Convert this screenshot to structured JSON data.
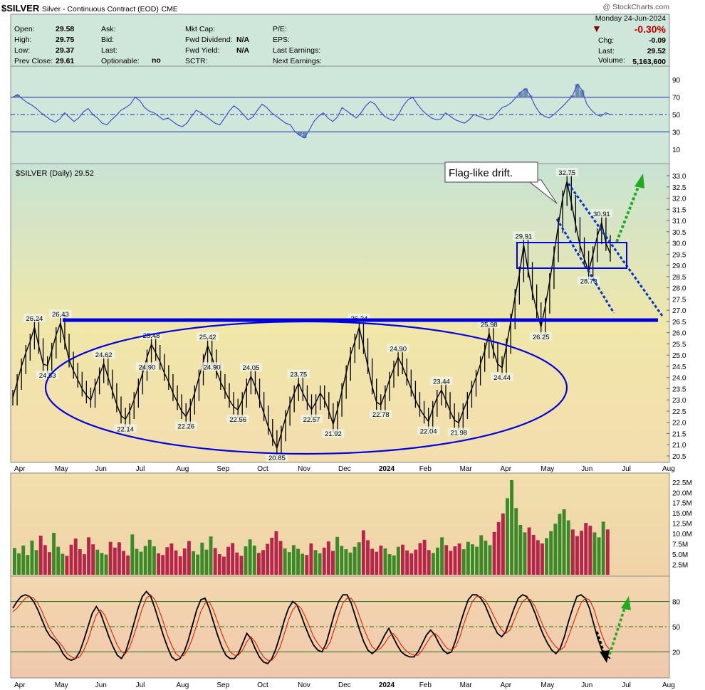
{
  "header": {
    "symbol": "$SILVER",
    "description": "Silver - Continuous Contract (EOD)",
    "exchange": "CME",
    "copyright": "@ StockCharts.com",
    "date": "Monday  24-Jun-2024",
    "stats_left": [
      {
        "label": "Open:",
        "value": "29.58"
      },
      {
        "label": "High:",
        "value": "29.75"
      },
      {
        "label": "Low:",
        "value": "29.37"
      },
      {
        "label": "Prev Close:",
        "value": "29.61"
      }
    ],
    "stats_mid": [
      {
        "label": "Ask:",
        "value": ""
      },
      {
        "label": "Bid:",
        "value": ""
      },
      {
        "label": "Last:",
        "value": ""
      },
      {
        "label": "Optionable:",
        "value": "no"
      }
    ],
    "stats_mid2": [
      {
        "label": "Mkt Cap:",
        "value": ""
      },
      {
        "label": "Fwd Dividend:",
        "value": "N/A"
      },
      {
        "label": "Fwd Yield:",
        "value": "N/A"
      },
      {
        "label": "SCTR:",
        "value": ""
      }
    ],
    "stats_mid3": [
      {
        "label": "P/E:",
        "value": ""
      },
      {
        "label": "EPS:",
        "value": ""
      },
      {
        "label": "Last Earnings:",
        "value": ""
      },
      {
        "label": "Next Earnings:",
        "value": ""
      }
    ],
    "change_pct": "-0.30%",
    "chg_label": "Chg:",
    "chg_value": "-0.09",
    "last_label": "Last:",
    "last_value": "29.52",
    "volume_label": "Volume:",
    "volume_value": "5,163,600",
    "down_color": "#8b0000"
  },
  "chart_data": [
    {
      "type": "line",
      "panel": "rsi",
      "yticks": [
        10,
        30,
        50,
        70,
        90
      ],
      "guides": [
        30,
        50,
        70
      ],
      "series": [
        {
          "values": [
            70,
            73,
            68,
            64,
            61,
            57,
            52,
            48,
            44,
            41,
            45,
            52,
            47,
            42,
            46,
            53,
            57,
            50,
            46,
            40,
            38,
            44,
            49,
            55,
            58,
            62,
            70,
            66,
            58,
            54,
            52,
            48,
            44,
            46,
            42,
            38,
            36,
            40,
            48,
            55,
            52,
            48,
            44,
            40,
            38,
            46,
            54,
            60,
            56,
            50,
            44,
            47,
            55,
            62,
            58,
            52,
            48,
            44,
            40,
            38,
            30,
            26,
            23,
            32,
            42,
            48,
            52,
            46,
            42,
            47,
            58,
            54,
            50,
            46,
            52,
            60,
            65,
            62,
            54,
            48,
            45,
            43,
            50,
            60,
            67,
            70,
            62,
            55,
            50,
            46,
            44,
            45,
            52,
            48,
            44,
            42,
            40,
            44,
            50,
            48,
            46,
            44,
            46,
            52,
            58,
            60,
            64,
            70,
            76,
            80,
            72,
            60,
            52,
            48,
            46,
            50,
            55,
            60,
            66,
            72,
            85,
            78,
            62,
            55,
            50,
            48,
            52,
            50
          ]
        }
      ]
    },
    {
      "type": "line",
      "panel": "price",
      "title": "$SILVER (Daily) 29.52",
      "ylim": [
        20.5,
        33.0
      ],
      "yticks": [
        "20.5",
        "21.0",
        "21.5",
        "22.0",
        "22.5",
        "23.0",
        "23.5",
        "24.0",
        "24.5",
        "25.0",
        "25.5",
        "26.0",
        "26.5",
        "27.0",
        "27.5",
        "28.0",
        "28.5",
        "29.0",
        "29.5",
        "30.0",
        "30.5",
        "31.0",
        "31.5",
        "32.0",
        "32.5",
        "33.0"
      ],
      "xticks": [
        "Apr",
        "May",
        "Jun",
        "Jul",
        "Aug",
        "Sep",
        "Oct",
        "Nov",
        "Dec",
        "2024",
        "Feb",
        "Mar",
        "Apr",
        "May",
        "Jun",
        "Jul",
        "Aug"
      ],
      "series": [
        {
          "values": [
            23.1,
            23.8,
            24.5,
            25.1,
            25.6,
            26.24,
            25.4,
            24.6,
            24.53,
            25.2,
            25.9,
            26.43,
            25.6,
            24.8,
            24.3,
            23.9,
            23.5,
            23.2,
            23.0,
            23.6,
            24.1,
            24.62,
            24.0,
            23.4,
            22.8,
            22.3,
            22.14,
            22.5,
            23.0,
            23.6,
            24.2,
            24.9,
            25.48,
            25.1,
            24.7,
            24.2,
            23.8,
            23.3,
            22.9,
            22.5,
            22.26,
            22.7,
            23.3,
            24.0,
            24.7,
            25.42,
            24.9,
            24.3,
            23.8,
            23.4,
            23.0,
            22.7,
            22.56,
            23.0,
            23.6,
            24.05,
            23.6,
            23.0,
            22.4,
            21.8,
            21.3,
            20.85,
            21.5,
            22.2,
            22.8,
            23.3,
            23.75,
            23.3,
            22.9,
            22.57,
            22.9,
            23.3,
            23.0,
            22.5,
            21.92,
            22.6,
            23.4,
            24.2,
            25.0,
            25.6,
            26.24,
            25.4,
            24.5,
            23.6,
            22.9,
            22.78,
            23.3,
            23.9,
            24.4,
            24.9,
            24.5,
            24.0,
            23.5,
            23.0,
            22.6,
            22.3,
            22.04,
            22.6,
            23.1,
            23.44,
            23.0,
            22.5,
            22.1,
            21.98,
            22.5,
            23.0,
            23.5,
            24.0,
            24.6,
            25.2,
            25.98,
            25.2,
            24.6,
            24.44,
            25.4,
            26.5,
            27.6,
            28.6,
            29.91,
            28.8,
            27.8,
            27.0,
            26.25,
            27.2,
            28.3,
            29.5,
            30.8,
            32.0,
            32.75,
            31.8,
            30.8,
            29.9,
            29.3,
            28.73,
            29.5,
            30.3,
            30.91,
            30.0,
            29.52
          ]
        }
      ],
      "annotations": [
        "26.24",
        "24.53",
        "26.43",
        "24.62",
        "22.14",
        "25.48",
        "22.26",
        "25.42",
        "22.56",
        "24.05",
        "20.85",
        "23.75",
        "22.57",
        "21.92",
        "26.24",
        "22.78",
        "24.90",
        "22.04",
        "23.44",
        "21.98",
        "25.98",
        "24.44",
        "29.91",
        "26.25",
        "32.75",
        "28.73",
        "30.91"
      ],
      "callout": "Flag-like drift.",
      "line_color": "#0000dd",
      "arrow_color": "#22aa22"
    },
    {
      "type": "bar",
      "panel": "volume",
      "yticks": [
        "2.5M",
        "5.0M",
        "7.5M",
        "10.0M",
        "12.5M",
        "15.0M",
        "17.5M",
        "20.0M",
        "22.5M"
      ],
      "values": [
        6.5,
        5.2,
        7.1,
        4.8,
        8.3,
        6.0,
        9.5,
        7.2,
        5.5,
        10.2,
        6.8,
        5.1,
        4.6,
        7.3,
        8.8,
        6.2,
        5.0,
        9.1,
        7.4,
        6.1,
        5.3,
        4.9,
        8.0,
        6.6,
        7.9,
        5.8,
        4.7,
        9.8,
        6.3,
        5.6,
        7.0,
        8.5,
        6.9,
        5.2,
        4.8,
        6.7,
        7.6,
        5.9,
        4.5,
        6.4,
        8.2,
        5.7,
        4.9,
        7.8,
        6.1,
        9.3,
        6.5,
        5.0,
        4.4,
        6.8,
        7.7,
        5.4,
        4.6,
        6.9,
        8.6,
        7.1,
        5.3,
        6.0,
        7.5,
        9.0,
        10.6,
        8.2,
        6.4,
        5.5,
        7.2,
        6.3,
        5.1,
        4.8,
        7.6,
        6.0,
        5.2,
        6.6,
        8.1,
        5.8,
        9.2,
        7.0,
        6.2,
        5.4,
        6.8,
        7.9,
        10.8,
        8.4,
        6.3,
        5.6,
        7.1,
        6.4,
        5.0,
        4.7,
        6.8,
        7.3,
        5.9,
        5.2,
        6.1,
        7.7,
        8.5,
        6.0,
        5.3,
        6.6,
        9.1,
        7.2,
        5.8,
        6.9,
        7.6,
        6.2,
        8.0,
        7.4,
        6.8,
        9.6,
        8.3,
        7.2,
        10.4,
        12.8,
        14.9,
        18.6,
        23.0,
        16.2,
        12.1,
        10.3,
        11.5,
        9.7,
        8.4,
        7.6,
        8.9,
        10.6,
        12.4,
        14.8,
        15.9,
        13.2,
        11.0,
        9.4,
        10.7,
        12.6,
        11.9,
        10.3,
        9.1,
        12.9,
        11.0
      ],
      "up_color": "#3a8a2a",
      "down_color": "#b8244a"
    },
    {
      "type": "line",
      "panel": "stochastic",
      "yticks": [
        20,
        50,
        80
      ],
      "guides": [
        20,
        50,
        80
      ],
      "series": [
        {
          "values": [
            72,
            80,
            86,
            88,
            86,
            80,
            70,
            58,
            46,
            38,
            34,
            28,
            18,
            12,
            10,
            12,
            20,
            34,
            50,
            66,
            74,
            66,
            52,
            38,
            26,
            16,
            12,
            20,
            36,
            54,
            72,
            86,
            92,
            86,
            72,
            56,
            40,
            26,
            14,
            10,
            12,
            20,
            34,
            52,
            70,
            82,
            84,
            72,
            56,
            40,
            26,
            16,
            12,
            12,
            18,
            30,
            42,
            36,
            24,
            14,
            8,
            6,
            12,
            24,
            40,
            58,
            72,
            80,
            76,
            64,
            50,
            38,
            28,
            22,
            20,
            30,
            48,
            66,
            80,
            88,
            88,
            78,
            62,
            46,
            32,
            22,
            18,
            22,
            30,
            40,
            48,
            38,
            28,
            20,
            16,
            14,
            14,
            20,
            30,
            40,
            46,
            40,
            30,
            22,
            18,
            20,
            34,
            52,
            68,
            82,
            88,
            88,
            84,
            76,
            64,
            52,
            42,
            38,
            44,
            58,
            72,
            84,
            88,
            86,
            78,
            66,
            52,
            40,
            30,
            22,
            18,
            24,
            38,
            56,
            72,
            86,
            88,
            84,
            72,
            54,
            36,
            22,
            16,
            12
          ]
        },
        {
          "values": [
            68,
            72,
            78,
            84,
            86,
            84,
            78,
            68,
            56,
            46,
            38,
            32,
            26,
            18,
            14,
            12,
            14,
            22,
            34,
            50,
            64,
            70,
            64,
            52,
            40,
            28,
            20,
            18,
            26,
            40,
            56,
            72,
            84,
            88,
            82,
            70,
            56,
            40,
            28,
            18,
            14,
            16,
            24,
            36,
            52,
            68,
            78,
            80,
            70,
            56,
            42,
            30,
            20,
            16,
            16,
            22,
            32,
            38,
            32,
            22,
            14,
            10,
            10,
            16,
            26,
            42,
            58,
            70,
            76,
            72,
            62,
            50,
            38,
            30,
            24,
            24,
            32,
            48,
            64,
            78,
            84,
            84,
            76,
            62,
            48,
            36,
            26,
            22,
            24,
            30,
            38,
            42,
            36,
            28,
            22,
            18,
            16,
            16,
            22,
            30,
            38,
            42,
            38,
            30,
            24,
            22,
            26,
            38,
            54,
            68,
            80,
            86,
            86,
            82,
            74,
            64,
            54,
            46,
            42,
            46,
            58,
            70,
            80,
            84,
            82,
            74,
            62,
            50,
            40,
            32,
            26,
            22,
            26,
            38,
            52,
            66,
            78,
            84,
            82,
            72,
            56,
            40,
            28,
            22
          ]
        }
      ]
    }
  ]
}
